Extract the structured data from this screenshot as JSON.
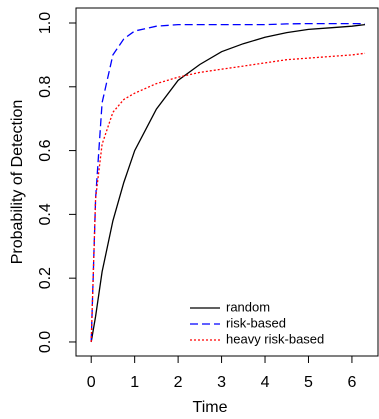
{
  "chart_data": {
    "type": "line",
    "xlabel": "Time",
    "ylabel": "Probability of Detection",
    "x": [
      0,
      0.1,
      0.25,
      0.5,
      0.75,
      1,
      1.5,
      2,
      2.5,
      3,
      3.5,
      4,
      4.5,
      5,
      5.5,
      6,
      6.3
    ],
    "series": [
      {
        "name": "random",
        "color": "#000000",
        "dash": "none",
        "values": [
          0,
          0.08,
          0.22,
          0.38,
          0.5,
          0.6,
          0.73,
          0.82,
          0.87,
          0.91,
          0.935,
          0.955,
          0.97,
          0.98,
          0.985,
          0.99,
          0.995
        ]
      },
      {
        "name": "risk-based",
        "color": "#0000ff",
        "dash": "8 4",
        "values": [
          0,
          0.45,
          0.75,
          0.9,
          0.95,
          0.975,
          0.99,
          0.995,
          0.995,
          0.995,
          0.995,
          0.995,
          0.997,
          0.998,
          0.998,
          0.998,
          0.998
        ]
      },
      {
        "name": "heavy risk-based",
        "color": "#ff0000",
        "dash": "2 2",
        "values": [
          0,
          0.45,
          0.62,
          0.72,
          0.76,
          0.78,
          0.81,
          0.83,
          0.845,
          0.855,
          0.865,
          0.875,
          0.885,
          0.89,
          0.895,
          0.9,
          0.905
        ]
      }
    ],
    "xlim": [
      -0.35,
      6.6
    ],
    "xticks": [
      0,
      1,
      2,
      3,
      4,
      5,
      6
    ],
    "ylim": [
      -0.044,
      1.047
    ],
    "yticks": [
      {
        "value": 0,
        "label": "0.0"
      },
      0.2,
      0.4,
      0.6,
      0.8,
      {
        "value": 1,
        "label": "1.0"
      }
    ],
    "legend": "bottom-right"
  }
}
